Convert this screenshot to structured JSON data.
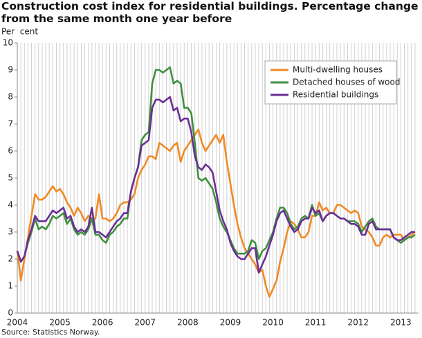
{
  "chart_data": {
    "type": "line",
    "title": "Construction cost index for residential buildings. Percentage change from the same month one year before",
    "y_label": "Per  cent",
    "source": "Source: Statistics Norway.",
    "categories": [
      "2004",
      null,
      null,
      null,
      null,
      null,
      null,
      null,
      null,
      null,
      null,
      null,
      "2005",
      null,
      null,
      null,
      null,
      null,
      null,
      null,
      null,
      null,
      null,
      null,
      "2006",
      null,
      null,
      null,
      null,
      null,
      null,
      null,
      null,
      null,
      null,
      null,
      "2007",
      null,
      null,
      null,
      null,
      null,
      null,
      null,
      null,
      null,
      null,
      null,
      "2008",
      null,
      null,
      null,
      null,
      null,
      null,
      null,
      null,
      null,
      null,
      null,
      "2009",
      null,
      null,
      null,
      null,
      null,
      null,
      null,
      null,
      null,
      null,
      null,
      "2010",
      null,
      null,
      null,
      null,
      null,
      null,
      null,
      null,
      null,
      null,
      null,
      "2011",
      null,
      null,
      null,
      null,
      null,
      null,
      null,
      null,
      null,
      null,
      null,
      "2012",
      null,
      null,
      null,
      null,
      null,
      null,
      null,
      null,
      null,
      null,
      null,
      "2013",
      null,
      null,
      null,
      null
    ],
    "ylim": [
      0,
      10
    ],
    "yticks": [
      0,
      1,
      2,
      3,
      4,
      5,
      6,
      7,
      8,
      9,
      10
    ],
    "legend": "upper right",
    "series": [
      {
        "name": "Multi-dwelling houses",
        "color": "#f08a24",
        "values": [
          2.3,
          1.2,
          2.0,
          2.8,
          3.6,
          4.4,
          4.2,
          4.2,
          4.3,
          4.5,
          4.7,
          4.5,
          4.6,
          4.4,
          4.1,
          3.9,
          3.6,
          3.9,
          3.7,
          3.4,
          3.6,
          3.5,
          3.5,
          4.4,
          3.5,
          3.5,
          3.4,
          3.5,
          3.7,
          4.0,
          4.1,
          4.1,
          4.2,
          4.4,
          5.0,
          5.3,
          5.5,
          5.8,
          5.8,
          5.7,
          6.3,
          6.2,
          6.1,
          6.0,
          6.2,
          6.3,
          5.6,
          6.0,
          6.2,
          6.4,
          6.6,
          6.8,
          6.3,
          6.0,
          6.2,
          6.4,
          6.6,
          6.3,
          6.6,
          5.6,
          4.8,
          4.0,
          3.3,
          2.8,
          2.4,
          2.2,
          2.0,
          1.8,
          1.5,
          1.6,
          1.0,
          0.6,
          0.9,
          1.2,
          1.9,
          2.4,
          3.0,
          3.4,
          3.3,
          3.1,
          2.8,
          2.8,
          3.0,
          3.6,
          3.6,
          4.1,
          3.8,
          3.9,
          3.7,
          3.7,
          4.0,
          4.0,
          3.9,
          3.8,
          3.7,
          3.8,
          3.7,
          3.2,
          3.1,
          3.0,
          2.8,
          2.5,
          2.5,
          2.8,
          2.9,
          2.8,
          2.9,
          2.9,
          2.9,
          2.7,
          2.8,
          2.9,
          3.0
        ]
      },
      {
        "name": "Detached houses of wood",
        "color": "#3f8f3f",
        "values": [
          2.3,
          1.9,
          2.1,
          2.6,
          3.0,
          3.5,
          3.1,
          3.2,
          3.1,
          3.3,
          3.6,
          3.5,
          3.6,
          3.7,
          3.3,
          3.5,
          3.1,
          2.9,
          3.0,
          2.9,
          3.1,
          3.5,
          2.9,
          2.9,
          2.7,
          2.6,
          2.9,
          3.0,
          3.2,
          3.3,
          3.5,
          3.5,
          4.5,
          5.0,
          5.4,
          6.4,
          6.6,
          6.7,
          8.5,
          9.0,
          9.0,
          8.9,
          9.0,
          9.1,
          8.5,
          8.6,
          8.5,
          7.6,
          7.6,
          7.4,
          6.3,
          5.0,
          4.9,
          5.0,
          4.8,
          4.6,
          4.1,
          3.5,
          3.2,
          3.0,
          2.7,
          2.4,
          2.2,
          2.2,
          2.2,
          2.3,
          2.7,
          2.6,
          2.0,
          2.3,
          2.4,
          2.7,
          3.0,
          3.5,
          3.9,
          3.9,
          3.7,
          3.3,
          3.1,
          3.2,
          3.5,
          3.6,
          3.5,
          4.0,
          3.6,
          3.7,
          3.4,
          3.6,
          3.7,
          3.7,
          3.6,
          3.5,
          3.5,
          3.4,
          3.4,
          3.4,
          3.3,
          3.0,
          3.2,
          3.4,
          3.5,
          3.2,
          3.1,
          3.1,
          3.1,
          3.1,
          2.8,
          2.7,
          2.6,
          2.7,
          2.8,
          2.8,
          2.9
        ]
      },
      {
        "name": "Residential buildings",
        "color": "#6a2f96",
        "values": [
          2.3,
          1.9,
          2.1,
          2.7,
          3.1,
          3.6,
          3.4,
          3.4,
          3.4,
          3.6,
          3.8,
          3.7,
          3.8,
          3.9,
          3.5,
          3.6,
          3.2,
          3.0,
          3.1,
          3.0,
          3.2,
          3.9,
          3.0,
          3.0,
          2.9,
          2.8,
          3.0,
          3.2,
          3.4,
          3.5,
          3.7,
          3.7,
          4.5,
          5.0,
          5.4,
          6.2,
          6.3,
          6.4,
          7.6,
          7.9,
          7.9,
          7.8,
          7.9,
          8.0,
          7.5,
          7.6,
          7.1,
          7.2,
          7.2,
          6.7,
          5.8,
          5.4,
          5.3,
          5.5,
          5.4,
          5.2,
          4.5,
          3.8,
          3.4,
          3.1,
          2.6,
          2.3,
          2.1,
          2.0,
          2.0,
          2.2,
          2.4,
          2.4,
          1.5,
          1.8,
          2.1,
          2.5,
          2.9,
          3.4,
          3.7,
          3.8,
          3.5,
          3.2,
          3.0,
          3.1,
          3.4,
          3.5,
          3.5,
          3.9,
          3.7,
          3.8,
          3.4,
          3.6,
          3.7,
          3.7,
          3.6,
          3.5,
          3.5,
          3.4,
          3.3,
          3.3,
          3.2,
          2.9,
          2.9,
          3.3,
          3.4,
          3.1,
          3.1,
          3.1,
          3.1,
          3.1,
          2.8,
          2.7,
          2.7,
          2.8,
          2.9,
          3.0,
          3.0
        ]
      }
    ]
  }
}
